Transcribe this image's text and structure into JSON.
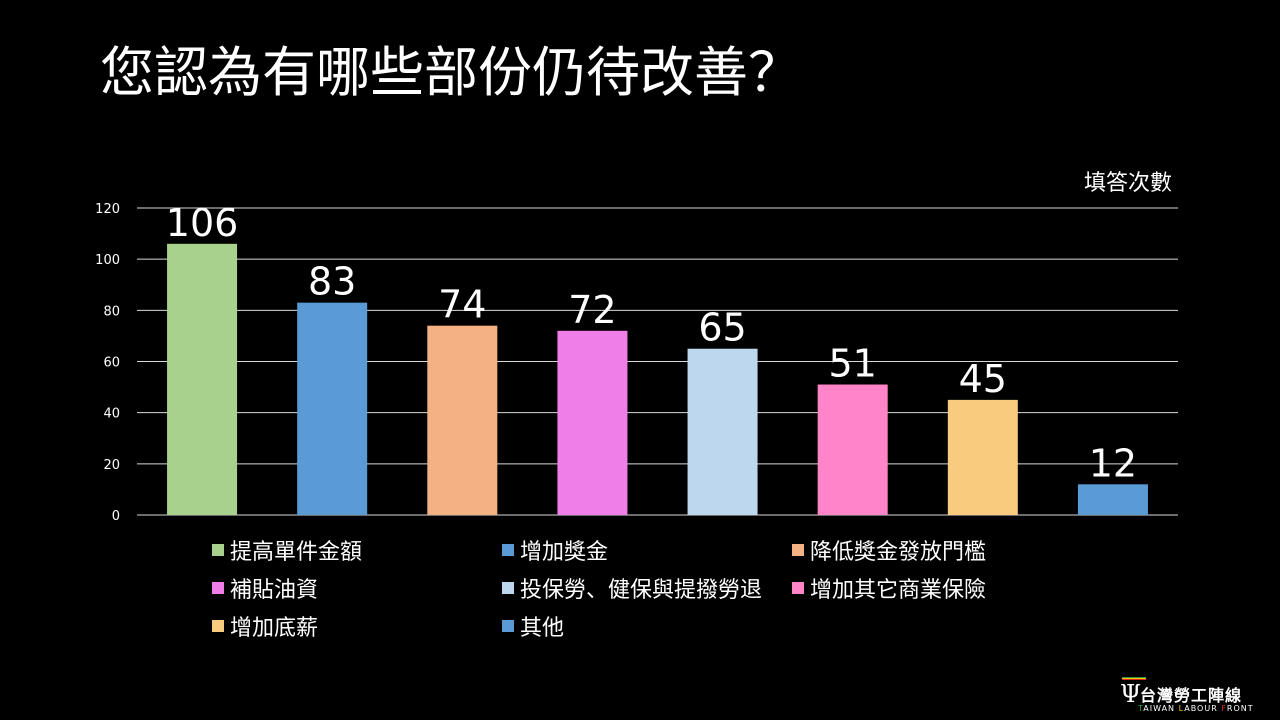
{
  "title": "您認為有哪些部份仍待改善？",
  "chart_data": {
    "type": "bar",
    "title": "",
    "ylabel": "填答次數",
    "xlabel": "",
    "ylim": [
      0,
      120
    ],
    "yticks": [
      0,
      20,
      40,
      60,
      80,
      100,
      120
    ],
    "grid": true,
    "legend_position": "bottom",
    "categories": [
      "提高單件金額",
      "增加獎金",
      "降低獎金發放門檻",
      "補貼油資",
      "投保勞、健保與提撥勞退",
      "增加其它商業保險",
      "增加底薪",
      "其他"
    ],
    "values": [
      106,
      83,
      74,
      72,
      65,
      51,
      45,
      12
    ],
    "colors": [
      "#a9d18e",
      "#5b9bd5",
      "#f4b183",
      "#f07ee8",
      "#bdd7ee",
      "#ff85c8",
      "#f8cb7f",
      "#5b9bd5"
    ]
  },
  "logo": {
    "name": "台灣勞工陣線",
    "english": [
      "T",
      "AIWAN ",
      "L",
      "ABOUR ",
      "F",
      "RONT"
    ],
    "colors": [
      "#2e9a3e",
      "#f2c500",
      "#d82c20"
    ]
  }
}
